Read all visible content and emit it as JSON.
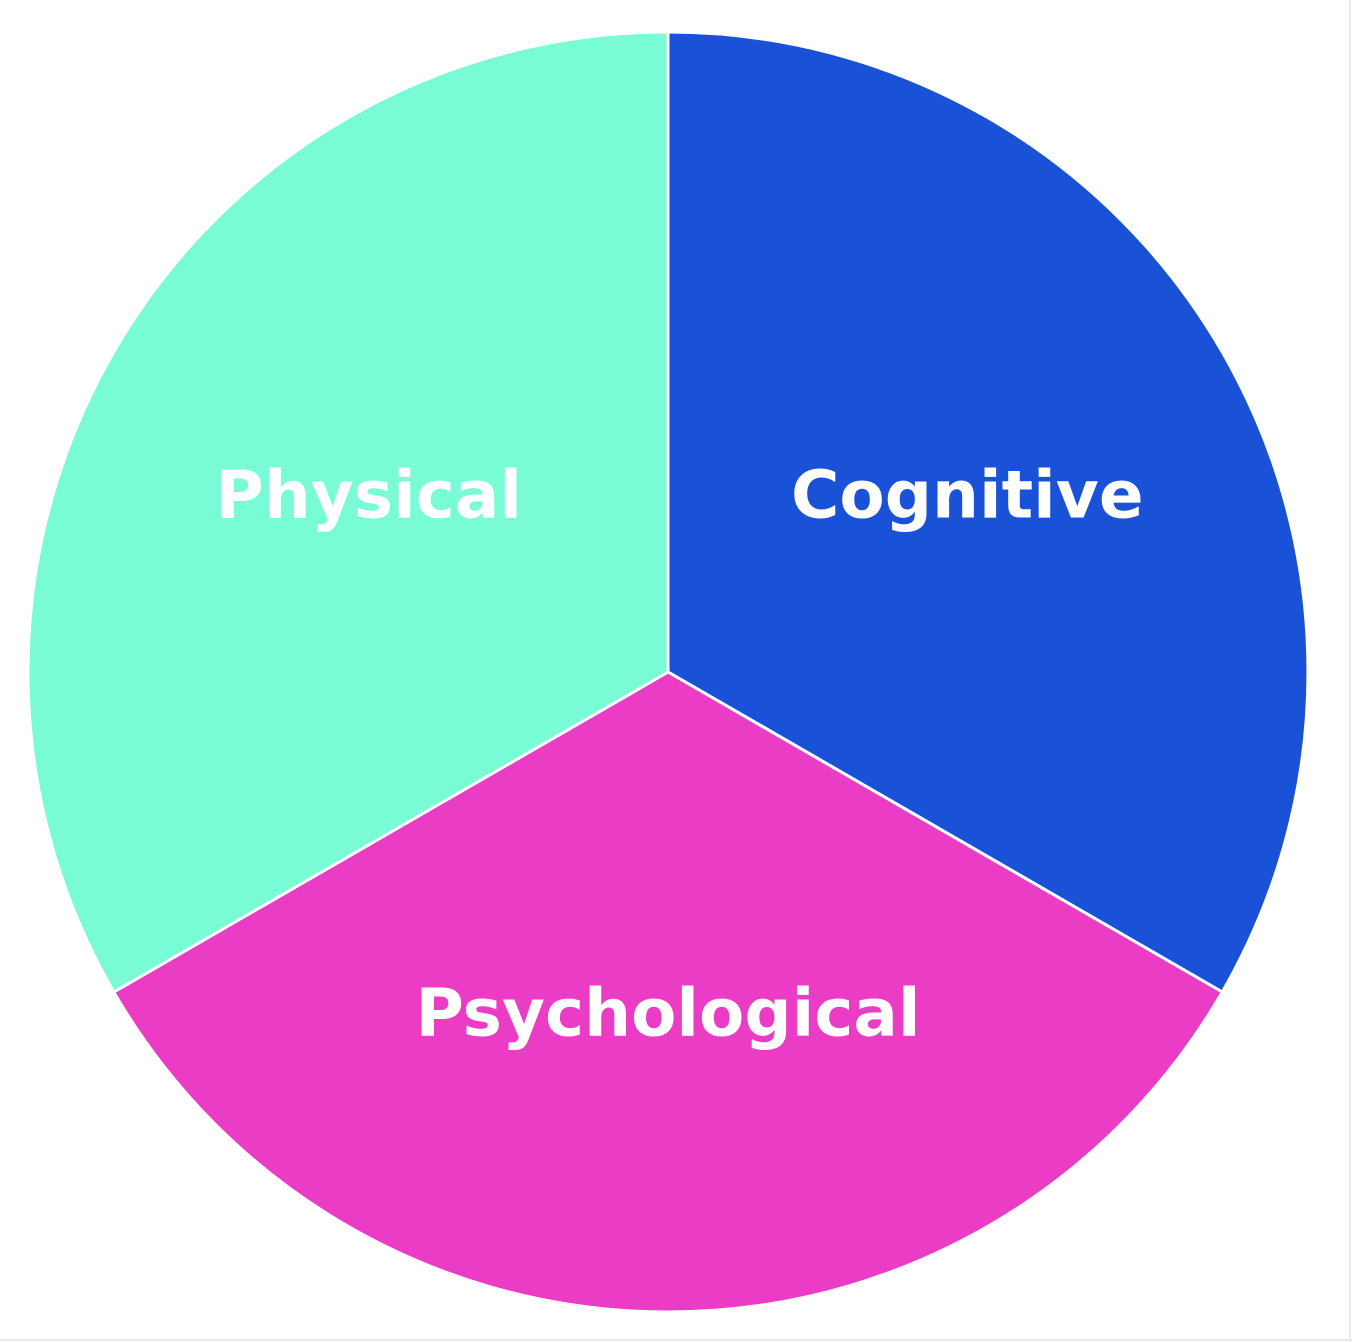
{
  "chart_data": {
    "type": "pie",
    "title": "",
    "slices": [
      {
        "label": "Cognitive",
        "value": 33.33,
        "color": "#1952D6"
      },
      {
        "label": "Psychological",
        "value": 33.33,
        "color": "#EA3CC4"
      },
      {
        "label": "Physical",
        "value": 33.33,
        "color": "#79FBD6"
      }
    ],
    "start_angle_deg": 0,
    "direction": "clockwise",
    "legend": "none"
  }
}
